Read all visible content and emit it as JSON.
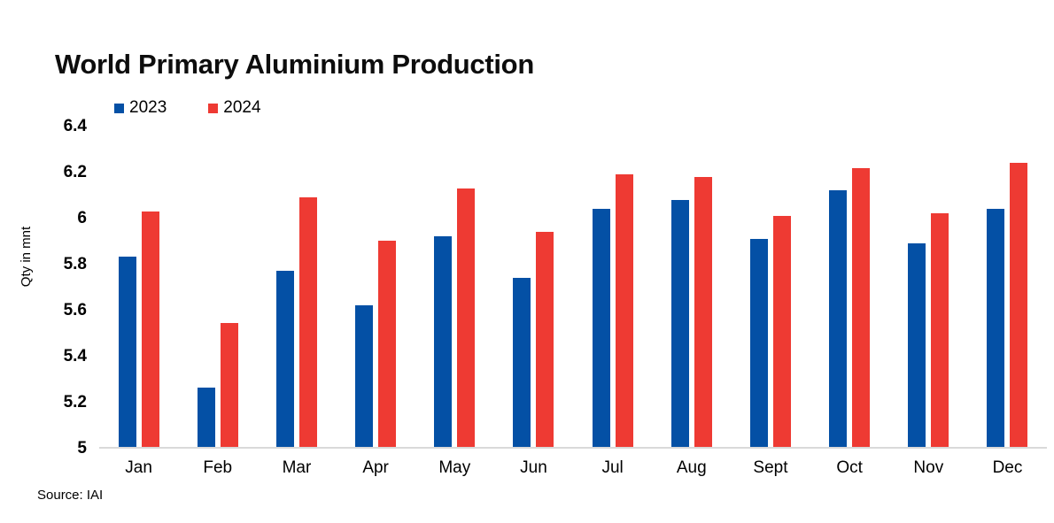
{
  "source": "Source: IAI",
  "chart_data": {
    "type": "bar",
    "title": "World Primary Aluminium Production",
    "categories": [
      "Jan",
      "Feb",
      "Mar",
      "Apr",
      "May",
      "Jun",
      "Jul",
      "Aug",
      "Sept",
      "Oct",
      "Nov",
      "Dec"
    ],
    "series": [
      {
        "name": "2023",
        "color": "#0450a5",
        "values": [
          5.83,
          5.26,
          5.77,
          5.62,
          5.92,
          5.74,
          6.04,
          6.08,
          5.91,
          6.12,
          5.89,
          6.04
        ]
      },
      {
        "name": "2024",
        "color": "#ee3a33",
        "values": [
          6.03,
          5.54,
          6.09,
          5.9,
          6.13,
          5.94,
          6.19,
          6.18,
          6.01,
          6.22,
          6.02,
          6.24
        ]
      }
    ],
    "xlabel": "",
    "ylabel": "Qty in mnt",
    "ylim": [
      5,
      6.4
    ],
    "yticks": [
      5,
      5.2,
      5.4,
      5.6,
      5.8,
      6,
      6.2,
      6.4
    ],
    "grid": false,
    "legend_position": "top-left",
    "baseline_color": "#d9d9d9",
    "background": "#ffffff"
  }
}
